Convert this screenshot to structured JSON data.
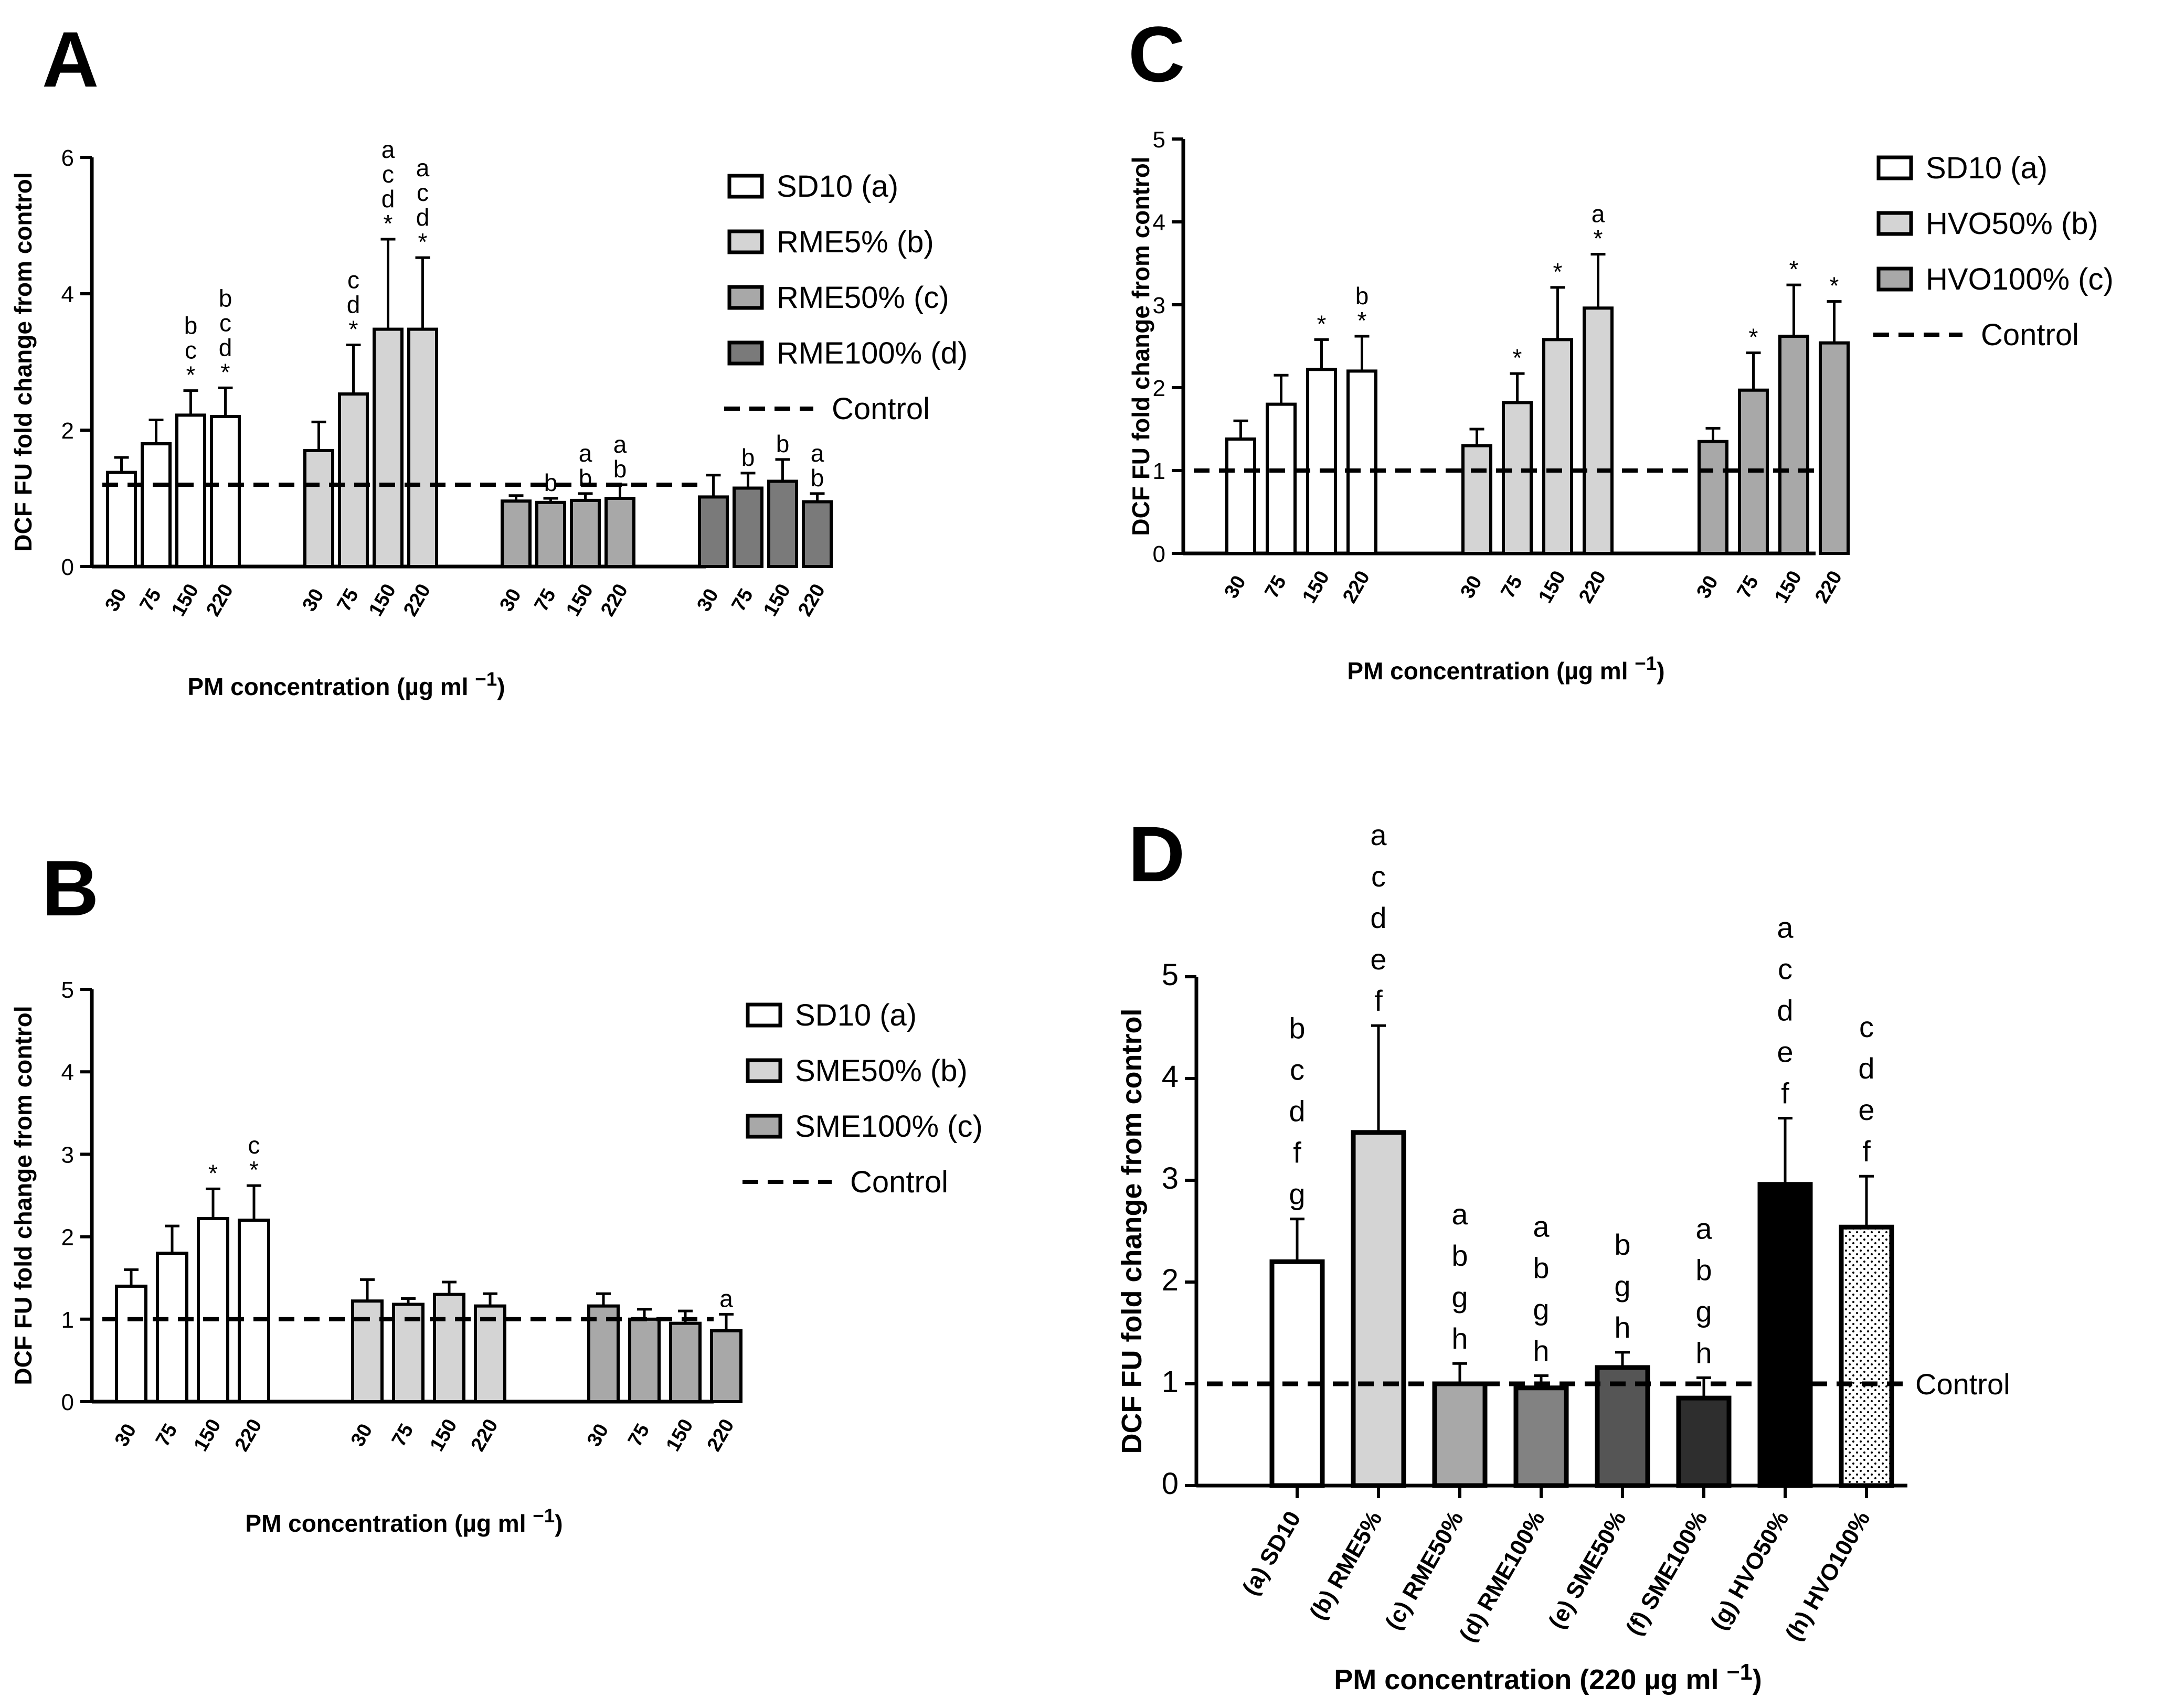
{
  "chart_data": [
    {
      "panel": "A",
      "type": "bar",
      "ylabel": "DCF FU fold change from control",
      "xlabel": "PM concentration (µg ml ",
      "xlabel_sup": "−1",
      "xlabel_close": ")",
      "ylim": [
        0,
        6
      ],
      "yticks": [
        0,
        2,
        4,
        6
      ],
      "control": 1.2,
      "control_label": "Control",
      "legend": [
        {
          "label": "SD10 (a)",
          "fill": "#ffffff"
        },
        {
          "label": "RME5% (b)",
          "fill": "#d4d4d4"
        },
        {
          "label": "RME50% (c)",
          "fill": "#a8a8a8"
        },
        {
          "label": "RME100% (d)",
          "fill": "#7a7a7a"
        }
      ],
      "groups": [
        {
          "fill": "#ffffff",
          "categories": [
            "30",
            "75",
            "150",
            "220"
          ],
          "values": [
            1.38,
            1.8,
            2.22,
            2.2
          ],
          "errors": [
            0.22,
            0.35,
            0.36,
            0.42
          ],
          "annotations": [
            [],
            [],
            [
              "b",
              "c",
              "*"
            ],
            [
              "b",
              "c",
              "d",
              "*"
            ]
          ]
        },
        {
          "fill": "#d4d4d4",
          "categories": [
            "30",
            "75",
            "150",
            "220"
          ],
          "values": [
            1.7,
            2.53,
            3.48,
            3.48
          ],
          "errors": [
            0.42,
            0.72,
            1.32,
            1.05
          ],
          "annotations": [
            [],
            [
              "c",
              "d",
              "*"
            ],
            [
              "a",
              "c",
              "d",
              "*"
            ],
            [
              "a",
              "c",
              "d",
              "*"
            ]
          ]
        },
        {
          "fill": "#a8a8a8",
          "categories": [
            "30",
            "75",
            "150",
            "220"
          ],
          "values": [
            0.96,
            0.94,
            0.97,
            1.0
          ],
          "errors": [
            0.08,
            0.06,
            0.1,
            0.2
          ],
          "annotations": [
            [],
            [
              "b"
            ],
            [
              "a",
              "b"
            ],
            [
              "a",
              "b"
            ]
          ]
        },
        {
          "fill": "#7a7a7a",
          "categories": [
            "30",
            "75",
            "150",
            "220"
          ],
          "values": [
            1.02,
            1.15,
            1.25,
            0.95
          ],
          "errors": [
            0.32,
            0.22,
            0.32,
            0.12
          ],
          "annotations": [
            [],
            [
              "b"
            ],
            [
              "b"
            ],
            [
              "a",
              "b"
            ]
          ]
        }
      ]
    },
    {
      "panel": "B",
      "type": "bar",
      "ylabel": "DCF FU fold change from control",
      "xlabel": "PM concentration (µg ml ",
      "xlabel_sup": "−1",
      "xlabel_close": ")",
      "ylim": [
        0,
        5
      ],
      "yticks": [
        0,
        1,
        2,
        3,
        4,
        5
      ],
      "control": 1.0,
      "control_label": "Control",
      "legend": [
        {
          "label": "SD10 (a)",
          "fill": "#ffffff"
        },
        {
          "label": "SME50% (b)",
          "fill": "#d4d4d4"
        },
        {
          "label": "SME100% (c)",
          "fill": "#a8a8a8"
        }
      ],
      "groups": [
        {
          "fill": "#ffffff",
          "categories": [
            "30",
            "75",
            "150",
            "220"
          ],
          "values": [
            1.4,
            1.8,
            2.22,
            2.2
          ],
          "errors": [
            0.2,
            0.33,
            0.36,
            0.42
          ],
          "annotations": [
            [],
            [],
            [
              "*"
            ],
            [
              "c",
              "*"
            ]
          ]
        },
        {
          "fill": "#d4d4d4",
          "categories": [
            "30",
            "75",
            "150",
            "220"
          ],
          "values": [
            1.22,
            1.18,
            1.3,
            1.16
          ],
          "errors": [
            0.26,
            0.07,
            0.15,
            0.15
          ],
          "annotations": [
            [],
            [],
            [],
            []
          ]
        },
        {
          "fill": "#a8a8a8",
          "categories": [
            "30",
            "75",
            "150",
            "220"
          ],
          "values": [
            1.16,
            1.0,
            0.95,
            0.86
          ],
          "errors": [
            0.15,
            0.12,
            0.15,
            0.2
          ],
          "annotations": [
            [],
            [],
            [],
            [
              "a"
            ]
          ]
        }
      ]
    },
    {
      "panel": "C",
      "type": "bar",
      "ylabel": "DCF FU fold change from control",
      "xlabel": "PM concentration (µg ml ",
      "xlabel_sup": "−1",
      "xlabel_close": ")",
      "ylim": [
        0,
        5
      ],
      "yticks": [
        0,
        1,
        2,
        3,
        4,
        5
      ],
      "control": 1.0,
      "control_label": "Control",
      "legend": [
        {
          "label": "SD10 (a)",
          "fill": "#ffffff"
        },
        {
          "label": "HVO50% (b)",
          "fill": "#d4d4d4"
        },
        {
          "label": "HVO100% (c)",
          "fill": "#a8a8a8"
        }
      ],
      "groups": [
        {
          "fill": "#ffffff",
          "categories": [
            "30",
            "75",
            "150",
            "220"
          ],
          "values": [
            1.38,
            1.8,
            2.22,
            2.2
          ],
          "errors": [
            0.22,
            0.35,
            0.36,
            0.42
          ],
          "annotations": [
            [],
            [],
            [
              "*"
            ],
            [
              "b",
              "*"
            ]
          ]
        },
        {
          "fill": "#d4d4d4",
          "categories": [
            "30",
            "75",
            "150",
            "220"
          ],
          "values": [
            1.3,
            1.82,
            2.58,
            2.96
          ],
          "errors": [
            0.2,
            0.35,
            0.63,
            0.65
          ],
          "annotations": [
            [],
            [
              "*"
            ],
            [
              "*"
            ],
            [
              "a",
              "*"
            ]
          ]
        },
        {
          "fill": "#a8a8a8",
          "categories": [
            "30",
            "75",
            "150",
            "220"
          ],
          "values": [
            1.35,
            1.97,
            2.62,
            2.54
          ],
          "errors": [
            0.16,
            0.45,
            0.62,
            0.5
          ],
          "annotations": [
            [],
            [
              "*"
            ],
            [
              "*"
            ],
            [
              "*"
            ]
          ]
        }
      ]
    },
    {
      "panel": "D",
      "type": "bar",
      "ylabel": "DCF FU fold change from control",
      "xlabel": "PM concentration (220 µg ml ",
      "xlabel_sup": "−1",
      "xlabel_close": ")",
      "ylim": [
        0,
        5
      ],
      "yticks": [
        0,
        1,
        2,
        3,
        4,
        5
      ],
      "control": 1.0,
      "control_label": "Control",
      "categories": [
        "(a) SD10",
        "(b) RME5%",
        "(c) RME50%",
        "(d) RME100%",
        "(e) SME50%",
        "(f) SME100%",
        "(g) HVO50%",
        "(h) HVO100%"
      ],
      "values": [
        2.2,
        3.47,
        1.0,
        0.96,
        1.16,
        0.86,
        2.96,
        2.54
      ],
      "errors": [
        0.42,
        1.05,
        0.2,
        0.12,
        0.15,
        0.2,
        0.65,
        0.5
      ],
      "fills": [
        "#ffffff",
        "#d4d4d4",
        "#a8a8a8",
        "#828282",
        "#555555",
        "#2e2e2e",
        "#000000",
        "dots"
      ],
      "annotations": [
        [
          "b",
          "c",
          "d",
          "f",
          "g"
        ],
        [
          "a",
          "c",
          "d",
          "e",
          "f"
        ],
        [
          "a",
          "b",
          "g",
          "h"
        ],
        [
          "a",
          "b",
          "g",
          "h"
        ],
        [
          "b",
          "g",
          "h"
        ],
        [
          "a",
          "b",
          "g",
          "h"
        ],
        [
          "a",
          "c",
          "d",
          "e",
          "f"
        ],
        [
          "c",
          "d",
          "e",
          "f"
        ]
      ]
    }
  ]
}
